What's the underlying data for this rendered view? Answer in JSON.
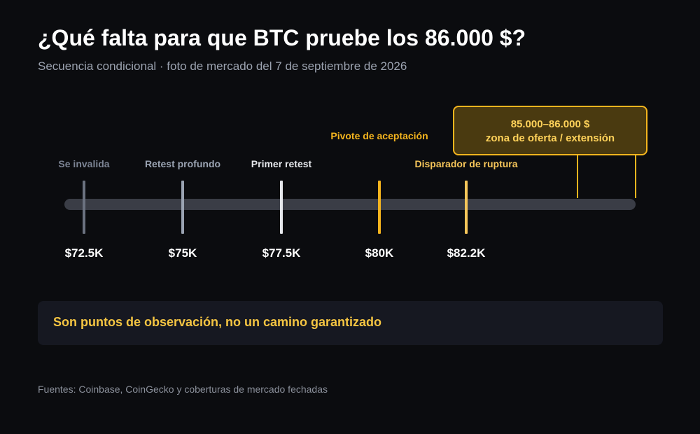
{
  "title": "¿Qué falta para que BTC pruebe los 86.000 $?",
  "subtitle": "Secuencia condicional · foto de mercado del 7 de septiembre de 2026",
  "levels": [
    {
      "label": "Se invalida",
      "price": "$72.5K",
      "color": "#6b7280"
    },
    {
      "label": "Retest profundo",
      "price": "$75K",
      "color": "#9aa3b2"
    },
    {
      "label": "Primer retest",
      "price": "$77.5K",
      "color": "#e5e7eb"
    },
    {
      "label": "Pivote de aceptación",
      "price": "$80K",
      "color": "#f5b51e"
    },
    {
      "label": "Disparador de ruptura",
      "price": "$82.2K",
      "color": "#f7c65a"
    }
  ],
  "zone": {
    "range": "85.000–86.000 $",
    "description": "zona de oferta / extensión",
    "color": "#f5b51e"
  },
  "note": "Son puntos de observación, no un camino garantizado",
  "sources": "Fuentes: Coinbase, CoinGecko y coberturas de mercado fechadas",
  "colors": {
    "background": "#0b0c0f",
    "track": "#3a3d46",
    "accent": "#f5c542"
  }
}
